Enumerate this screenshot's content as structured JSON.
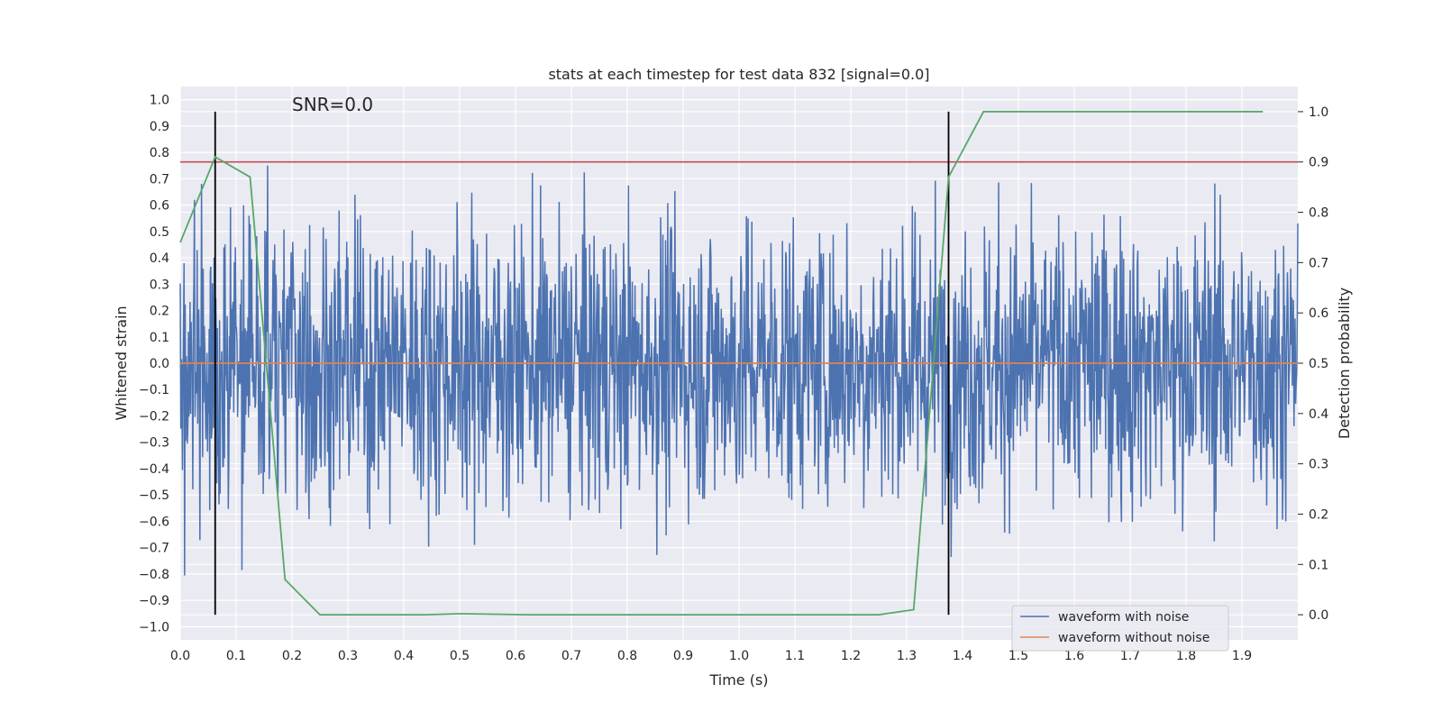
{
  "chart_data": {
    "type": "line",
    "title": "stats at each timestep for test data 832 [signal=0.0]",
    "xlabel": "Time (s)",
    "ylabel": "Whitened strain",
    "ylabel_right": "Detection probability",
    "xlim": [
      0.0,
      2.0
    ],
    "ylim": [
      -1.05,
      1.05
    ],
    "ylim_right": [
      -0.05,
      1.05
    ],
    "x_ticks": [
      "0.0",
      "0.1",
      "0.2",
      "0.3",
      "0.4",
      "0.5",
      "0.6",
      "0.7",
      "0.8",
      "0.9",
      "1.0",
      "1.1",
      "1.2",
      "1.3",
      "1.4",
      "1.5",
      "1.6",
      "1.7",
      "1.8",
      "1.9"
    ],
    "y_ticks": [
      "1.0",
      "0.9",
      "0.8",
      "0.7",
      "0.6",
      "0.5",
      "0.4",
      "0.3",
      "0.2",
      "0.1",
      "0.0",
      "-0.1",
      "-0.2",
      "-0.3",
      "-0.4",
      "-0.5",
      "-0.6",
      "-0.7",
      "-0.8",
      "-0.9",
      "-1.0"
    ],
    "y_ticks_right": [
      "1.0",
      "0.9",
      "0.8",
      "0.7",
      "0.6",
      "0.5",
      "0.4",
      "0.3",
      "0.2",
      "0.1",
      "0.0"
    ],
    "annotation": "SNR=0.0",
    "threshold_line": {
      "y_right": 0.9,
      "color": "#c44e52"
    },
    "vertical_lines": [
      0.0625,
      1.375
    ],
    "noise_samples": 2048,
    "series": [
      {
        "name": "waveform with noise",
        "color": "#4c72b0",
        "axis": "left",
        "description": "whitened noise, amplitude within ±1.0"
      },
      {
        "name": "waveform without noise",
        "color": "#dd8452",
        "axis": "left",
        "x": [
          0.0,
          2.0
        ],
        "values": [
          0.0,
          0.0
        ]
      },
      {
        "name": "detection probability",
        "color": "#55a868",
        "axis": "right",
        "x": [
          0.0,
          0.0625,
          0.125,
          0.1875,
          0.25,
          0.3125,
          0.375,
          0.4375,
          0.5,
          0.5625,
          0.625,
          0.6875,
          0.75,
          0.8125,
          0.875,
          0.9375,
          1.0,
          1.0625,
          1.125,
          1.1875,
          1.25,
          1.3125,
          1.375,
          1.4375,
          1.5,
          1.5625,
          1.625,
          1.6875,
          1.75,
          1.8125,
          1.875,
          1.9375
        ],
        "values": [
          0.74,
          0.91,
          0.87,
          0.07,
          0.0,
          0.0,
          0.0,
          0.0,
          0.002,
          0.001,
          0.0,
          0.0,
          0.0,
          0.0,
          0.0,
          0.0,
          0.0,
          0.0,
          0.0,
          0.0,
          0.0,
          0.01,
          0.87,
          1.0,
          1.0,
          1.0,
          1.0,
          1.0,
          1.0,
          1.0,
          1.0,
          1.0
        ]
      }
    ],
    "legend": [
      "waveform with noise",
      "waveform without noise"
    ],
    "legend_position": "bottom-right"
  }
}
